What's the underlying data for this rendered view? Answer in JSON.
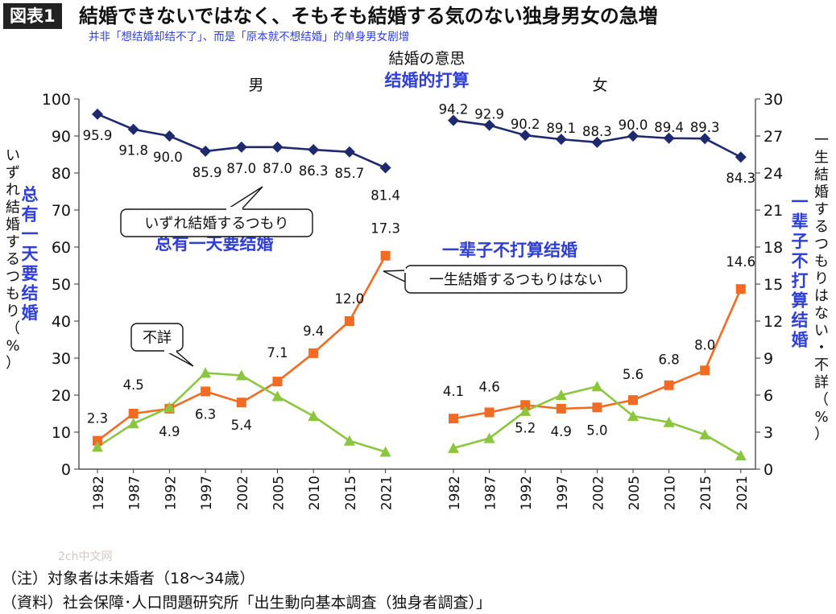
{
  "header": {
    "badge": "図表1",
    "title": "結婚できないではなく、そもそも結婚する気のない独身男女の急増",
    "subtitle_cn": "并非「想结婚却结不了」、而是「原本就不想结婚」的单身男女剧增"
  },
  "chart_data": {
    "type": "line",
    "title": "結婚の意思",
    "title_cn": "结婚的打算",
    "panels": [
      {
        "name": "男",
        "x": [
          "1982",
          "1987",
          "1992",
          "1997",
          "2002",
          "2005",
          "2010",
          "2015",
          "2021"
        ]
      },
      {
        "name": "女",
        "x": [
          "1982",
          "1987",
          "1992",
          "1997",
          "2002",
          "2005",
          "2010",
          "2015",
          "2021"
        ]
      }
    ],
    "left_axis": {
      "label": "いずれ結婚するつもり（%）",
      "label_cn": "总有一天要结婚",
      "ylim": [
        0,
        100
      ],
      "ticks": [
        "0",
        "10",
        "20",
        "30",
        "40",
        "50",
        "60",
        "70",
        "80",
        "90",
        "100"
      ]
    },
    "right_axis": {
      "label": "一生結婚するつもりはない・不詳（%）",
      "label_cn": "一辈子不打算结婚",
      "ylim": [
        0,
        30
      ],
      "ticks": [
        "0",
        "3",
        "6",
        "9",
        "12",
        "15",
        "18",
        "21",
        "24",
        "27",
        "30"
      ]
    },
    "series": [
      {
        "name": "いずれ結婚するつもり",
        "name_cn": "总有一天要结婚",
        "axis": "left",
        "color": "#1f2a6e",
        "marker": "diamond",
        "male": [
          95.9,
          91.8,
          90.0,
          85.9,
          87.0,
          87.0,
          86.3,
          85.7,
          81.4
        ],
        "female": [
          94.2,
          92.9,
          90.2,
          89.1,
          88.3,
          90.0,
          89.4,
          89.3,
          84.3
        ],
        "male_labels": [
          "95.9",
          "91.8",
          "90.0",
          "85.9",
          "87.0",
          "87.0",
          "86.3",
          "85.7",
          "81.4"
        ],
        "female_labels": [
          "94.2",
          "92.9",
          "90.2",
          "89.1",
          "88.3",
          "90.0",
          "89.4",
          "89.3",
          "84.3"
        ]
      },
      {
        "name": "一生結婚するつもりはない",
        "name_cn": "一辈子不打算结婚",
        "axis": "right",
        "color": "#f26b22",
        "marker": "square",
        "male": [
          2.3,
          4.5,
          4.9,
          6.3,
          5.4,
          7.1,
          9.4,
          12.0,
          17.3
        ],
        "female": [
          4.1,
          4.6,
          5.2,
          4.9,
          5.0,
          5.6,
          6.8,
          8.0,
          14.6
        ],
        "male_labels": [
          "2.3",
          "4.5",
          "4.9",
          "6.3",
          "5.4",
          "7.1",
          "9.4",
          "12.0",
          "17.3"
        ],
        "female_labels": [
          "4.1",
          "4.6",
          "5.2",
          "4.9",
          "5.0",
          "5.6",
          "6.8",
          "8.0",
          "14.6"
        ]
      },
      {
        "name": "不詳",
        "axis": "right",
        "color": "#8cc63f",
        "marker": "triangle",
        "male": [
          1.8,
          3.7,
          5.0,
          7.8,
          7.6,
          5.9,
          4.3,
          2.3,
          1.4
        ],
        "female": [
          1.7,
          2.5,
          4.7,
          6.0,
          6.7,
          4.3,
          3.8,
          2.8,
          1.1
        ]
      }
    ]
  },
  "notes": {
    "note1": "（注）対象者は未婚者（18〜34歳）",
    "note2": "（資料）社会保障･人口問題研究所「出生動向基本調査（独身者調査）」"
  },
  "watermark": "2ch中文网"
}
